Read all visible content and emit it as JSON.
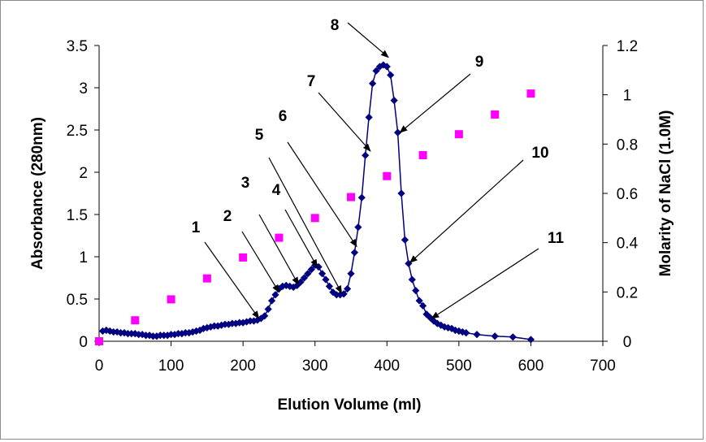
{
  "chart_data": {
    "type": "scatter",
    "title": "",
    "xlabel": "Elution Volume (ml)",
    "ylabel": "Absorbance (280nm)",
    "y2label": "Molarity of NaCl (1.0M)",
    "xlim": [
      0,
      700
    ],
    "ylim": [
      0,
      3.5
    ],
    "y2lim": [
      0,
      1.2
    ],
    "xticks": [
      "0",
      "100",
      "200",
      "300",
      "400",
      "500",
      "600",
      "700"
    ],
    "yticks": [
      "0",
      "0.5",
      "1",
      "1.5",
      "2",
      "2.5",
      "3",
      "3.5"
    ],
    "y2ticks": [
      "0",
      "0.2",
      "0.4",
      "0.6",
      "0.8",
      "1",
      "1.2"
    ],
    "grid": false,
    "legend": "none",
    "series": [
      {
        "axis": "left",
        "color": "#000080",
        "marker": "diamond",
        "line": true,
        "x": [
          5,
          10,
          15,
          20,
          25,
          30,
          35,
          40,
          45,
          50,
          55,
          60,
          65,
          70,
          75,
          80,
          85,
          90,
          95,
          100,
          105,
          110,
          115,
          120,
          125,
          130,
          135,
          140,
          145,
          150,
          155,
          160,
          165,
          170,
          175,
          180,
          185,
          190,
          195,
          200,
          205,
          210,
          215,
          220,
          225,
          230,
          235,
          240,
          245,
          250,
          255,
          260,
          265,
          270,
          275,
          280,
          285,
          290,
          295,
          300,
          305,
          310,
          315,
          320,
          325,
          330,
          335,
          340,
          345,
          350,
          355,
          360,
          365,
          370,
          375,
          380,
          385,
          390,
          395,
          400,
          405,
          410,
          415,
          420,
          425,
          430,
          435,
          440,
          445,
          450,
          455,
          460,
          465,
          470,
          475,
          480,
          485,
          490,
          495,
          500,
          505,
          510,
          525,
          550,
          575,
          600
        ],
        "y": [
          0.12,
          0.13,
          0.12,
          0.11,
          0.11,
          0.1,
          0.1,
          0.09,
          0.09,
          0.09,
          0.08,
          0.08,
          0.07,
          0.07,
          0.06,
          0.06,
          0.07,
          0.07,
          0.07,
          0.08,
          0.08,
          0.09,
          0.09,
          0.1,
          0.1,
          0.11,
          0.12,
          0.13,
          0.15,
          0.16,
          0.17,
          0.18,
          0.18,
          0.19,
          0.2,
          0.2,
          0.21,
          0.21,
          0.22,
          0.22,
          0.23,
          0.24,
          0.24,
          0.25,
          0.27,
          0.3,
          0.38,
          0.48,
          0.55,
          0.62,
          0.65,
          0.66,
          0.65,
          0.64,
          0.66,
          0.7,
          0.75,
          0.8,
          0.85,
          0.9,
          0.88,
          0.8,
          0.73,
          0.65,
          0.58,
          0.55,
          0.55,
          0.56,
          0.62,
          0.8,
          1.05,
          1.35,
          1.7,
          2.2,
          2.65,
          3.05,
          3.2,
          3.25,
          3.27,
          3.25,
          3.15,
          2.85,
          2.47,
          1.75,
          1.2,
          0.92,
          0.73,
          0.6,
          0.48,
          0.42,
          0.32,
          0.28,
          0.24,
          0.21,
          0.19,
          0.17,
          0.16,
          0.15,
          0.13,
          0.12,
          0.11,
          0.1,
          0.08,
          0.06,
          0.05,
          0.02
        ]
      },
      {
        "axis": "right",
        "color": "#FF00FF",
        "marker": "square",
        "line": false,
        "x": [
          0,
          50,
          100,
          150,
          200,
          250,
          300,
          350,
          400,
          450,
          500,
          550,
          600
        ],
        "y": [
          0.0,
          0.085,
          0.17,
          0.255,
          0.34,
          0.42,
          0.5,
          0.585,
          0.67,
          0.755,
          0.84,
          0.92,
          1.005
        ]
      }
    ],
    "annotations": [
      {
        "label": "1",
        "target": [
          222,
          0.27
        ]
      },
      {
        "label": "2",
        "target": [
          250,
          0.58
        ]
      },
      {
        "label": "3",
        "target": [
          277,
          0.67
        ]
      },
      {
        "label": "4",
        "target": [
          303,
          0.88
        ]
      },
      {
        "label": "5",
        "target": [
          337,
          0.57
        ]
      },
      {
        "label": "6",
        "target": [
          358,
          1.12
        ]
      },
      {
        "label": "7",
        "target": [
          377,
          2.25
        ]
      },
      {
        "label": "8",
        "target": [
          402,
          3.36
        ]
      },
      {
        "label": "9",
        "target": [
          418,
          2.47
        ]
      },
      {
        "label": "10",
        "target": [
          432,
          0.93
        ]
      },
      {
        "label": "11",
        "target": [
          462,
          0.27
        ]
      }
    ]
  }
}
